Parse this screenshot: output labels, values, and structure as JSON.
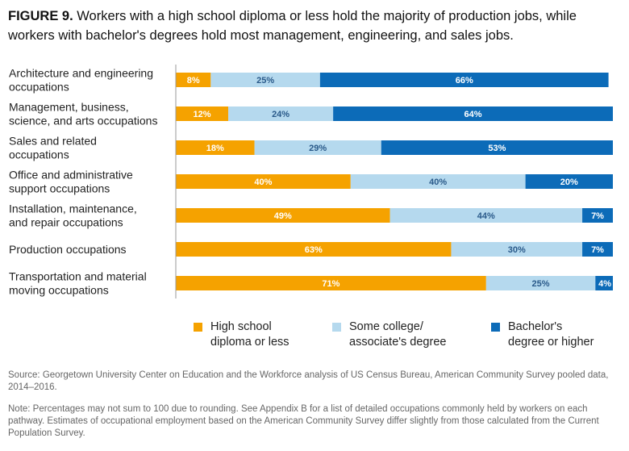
{
  "title": {
    "label": "FIGURE 9.",
    "text": "Workers with a high school diploma or less hold the majority of production jobs, while workers with bachelor's degrees hold most management, engineering, and sales jobs."
  },
  "colors": {
    "high_school": "#F5A200",
    "some_college": "#B5D9EE",
    "bachelors": "#0C6BB8",
    "label_light": "#FFFFFF",
    "label_dark": "#2A5A8A"
  },
  "legend": [
    {
      "name": "High school diploma or less",
      "lines": [
        "High school",
        "diploma or less"
      ],
      "color_key": "high_school"
    },
    {
      "name": "Some college/ associate's degree",
      "lines": [
        "Some college/",
        "associate's degree"
      ],
      "color_key": "some_college"
    },
    {
      "name": "Bachelor's degree or higher",
      "lines": [
        "Bachelor's",
        "degree or higher"
      ],
      "color_key": "bachelors"
    }
  ],
  "chart_data": {
    "type": "bar",
    "orientation": "horizontal",
    "stacked": true,
    "xlim": [
      0,
      100
    ],
    "categories": [
      [
        "Architecture and engineering",
        "occupations"
      ],
      [
        "Management, business,",
        "science, and arts occupations"
      ],
      [
        "Sales and related",
        "occupations"
      ],
      [
        "Office and administrative",
        "support occupations"
      ],
      [
        "Installation, maintenance,",
        "and repair occupations"
      ],
      [
        "Production occupations"
      ],
      [
        "Transportation and material",
        "moving occupations"
      ]
    ],
    "series": [
      {
        "name": "High school diploma or less",
        "color_key": "high_school",
        "values": [
          8,
          12,
          18,
          40,
          49,
          63,
          71
        ]
      },
      {
        "name": "Some college/ associate's degree",
        "color_key": "some_college",
        "values": [
          25,
          24,
          29,
          40,
          44,
          30,
          25
        ]
      },
      {
        "name": "Bachelor's degree or higher",
        "color_key": "bachelors",
        "values": [
          66,
          64,
          53,
          20,
          7,
          7,
          4
        ]
      }
    ]
  },
  "source": "Source: Georgetown University Center on Education and the Workforce analysis of US Census Bureau, American Community Survey pooled data, 2014–2016.",
  "note": "Note: Percentages may not sum to 100 due to rounding. See Appendix B for a list of detailed occupations commonly held by workers on each pathway. Estimates of occupational employment based on the American Community Survey differ slightly from those calculated from the Current Population Survey."
}
